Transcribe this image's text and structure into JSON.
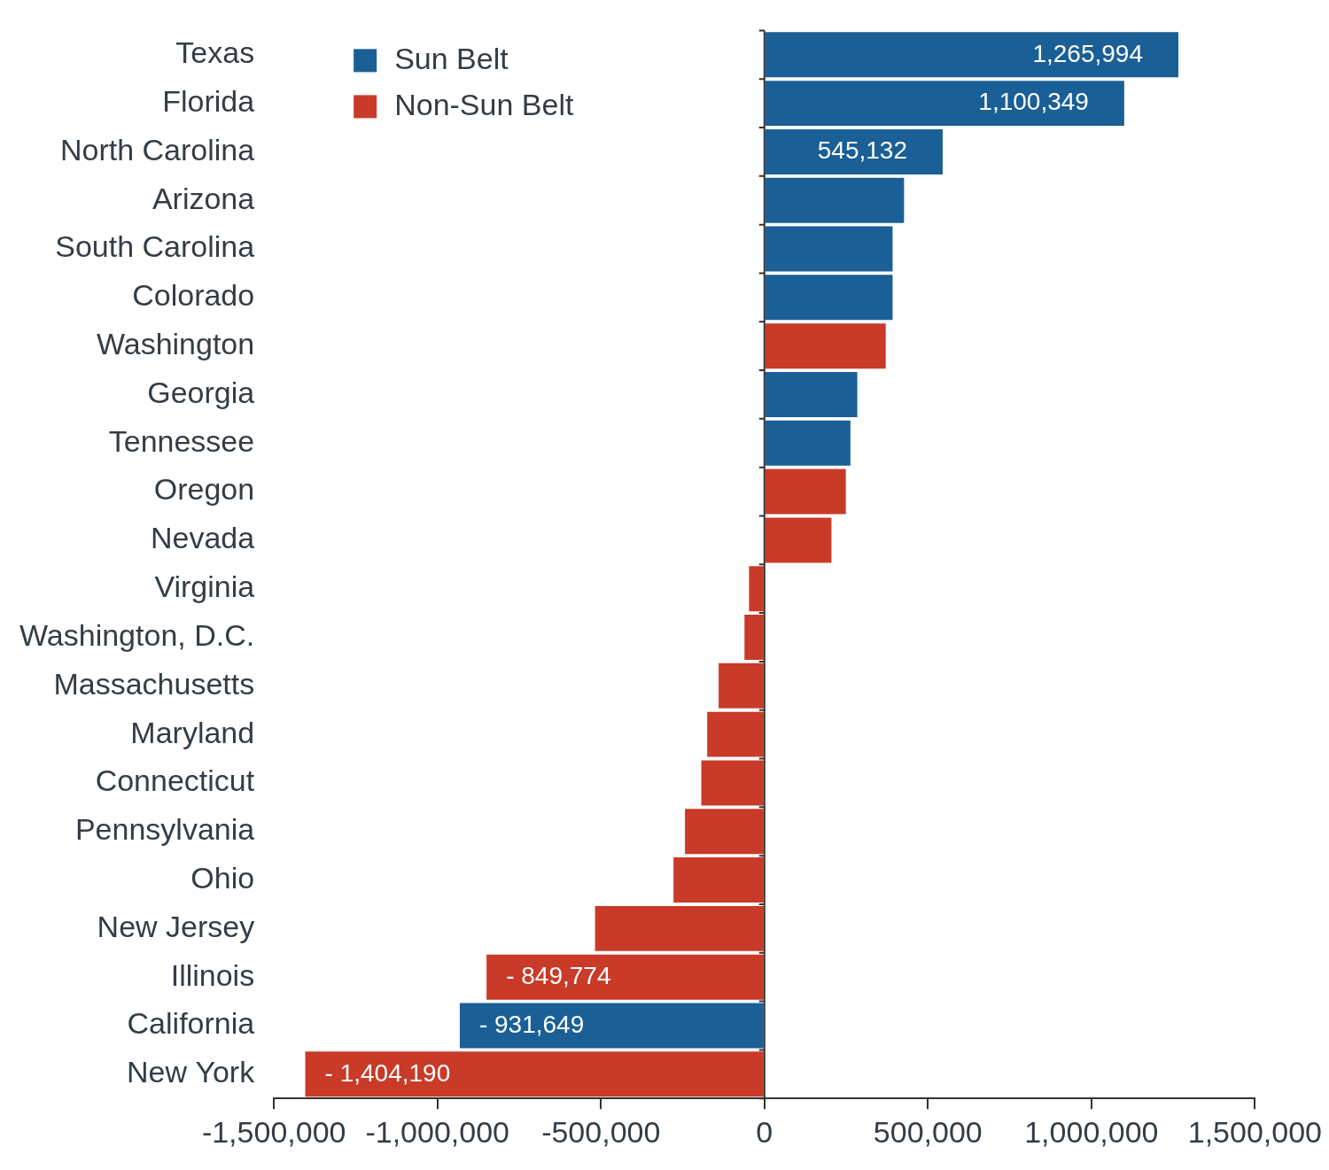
{
  "chart_data": {
    "type": "bar",
    "orientation": "horizontal",
    "categories": [
      "Texas",
      "Florida",
      "North Carolina",
      "Arizona",
      "South Carolina",
      "Colorado",
      "Washington",
      "Georgia",
      "Tennessee",
      "Oregon",
      "Nevada",
      "Virginia",
      "Washington, D.C.",
      "Massachusetts",
      "Maryland",
      "Connecticut",
      "Pennsylvania",
      "Ohio",
      "New Jersey",
      "Illinois",
      "California",
      "New York"
    ],
    "series": [
      {
        "name": "Sun Belt",
        "color": "#1a5f96",
        "values": [
          1265994,
          1100349,
          545132,
          427000,
          392000,
          392000,
          null,
          284000,
          263000,
          null,
          null,
          null,
          null,
          null,
          null,
          null,
          null,
          null,
          null,
          null,
          -931649,
          null
        ],
        "value_labels": [
          "1,265,994",
          "1,100,349",
          "545,132",
          null,
          null,
          null,
          null,
          null,
          null,
          null,
          null,
          null,
          null,
          null,
          null,
          null,
          null,
          null,
          null,
          null,
          "- 931,649",
          null
        ]
      },
      {
        "name": "Non-Sun Belt",
        "color": "#c93a28",
        "values": [
          null,
          null,
          null,
          null,
          null,
          null,
          371000,
          null,
          null,
          249000,
          205000,
          -47000,
          -61000,
          -140000,
          -175000,
          -193000,
          -243000,
          -278000,
          -518000,
          -849774,
          null,
          -1404190
        ],
        "value_labels": [
          null,
          null,
          null,
          null,
          null,
          null,
          null,
          null,
          null,
          null,
          null,
          null,
          null,
          null,
          null,
          null,
          null,
          null,
          null,
          "- 849,774",
          null,
          "- 1,404,190"
        ]
      }
    ],
    "xlim": [
      -1500000,
      1500000
    ],
    "xticks": [
      {
        "value": -1500000,
        "label": "-1,500,000"
      },
      {
        "value": -1000000,
        "label": "-1,000,000"
      },
      {
        "value": -500000,
        "label": "-500,000"
      },
      0,
      {
        "value": 500000,
        "label": "500,000"
      },
      {
        "value": 1000000,
        "label": "1,000,000"
      },
      {
        "value": 1500000,
        "label": "1,500,000"
      }
    ],
    "grid": false,
    "legend": "upper left",
    "data_labels": true
  }
}
